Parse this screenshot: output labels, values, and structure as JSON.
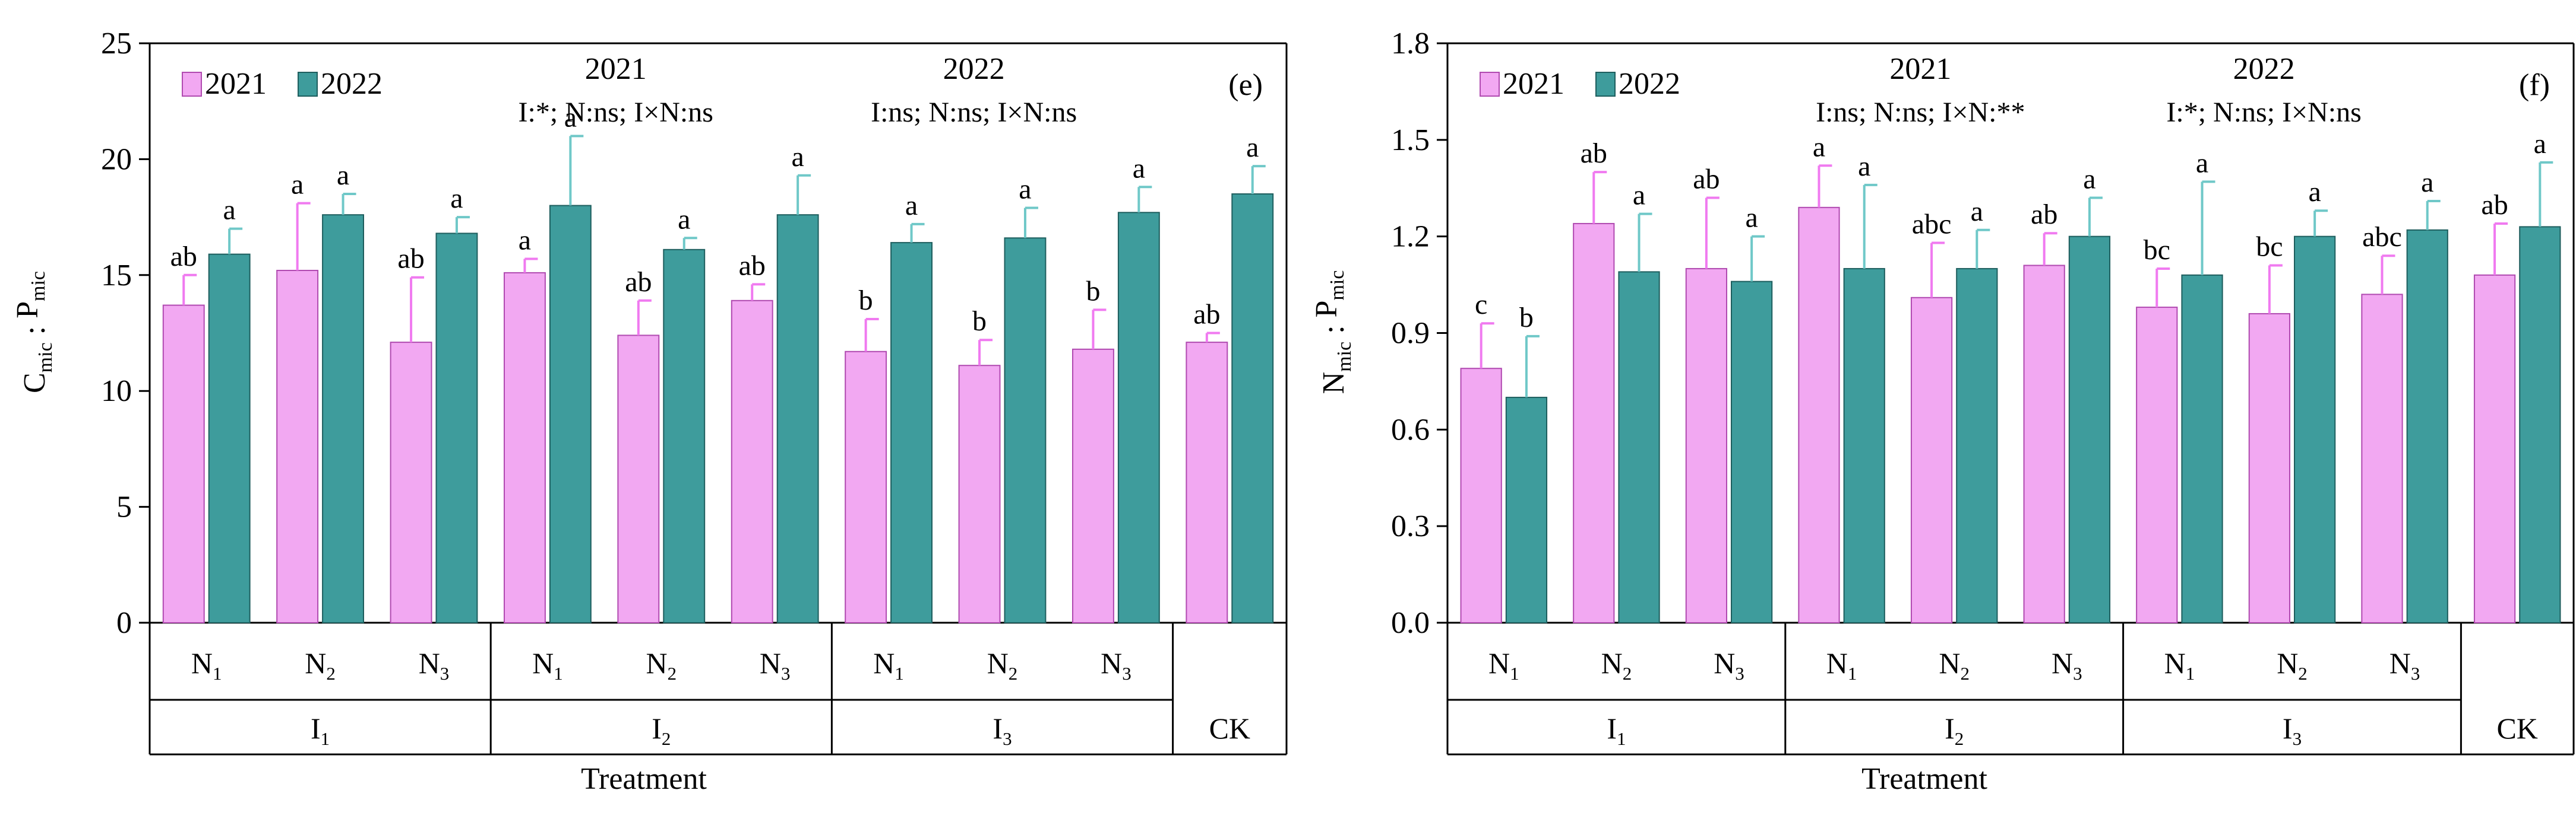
{
  "colors": {
    "y2021_fill": "#F2A8F2",
    "y2021_stroke": "#B04AB0",
    "y2021_err": "#F07AF0",
    "y2022_fill": "#3E9C9C",
    "y2022_stroke": "#1E5E5E",
    "y2022_err": "#6FC8C8",
    "axis": "#000000"
  },
  "chart_data": [
    {
      "id": "panel-e",
      "type": "bar",
      "panel_label": "(e)",
      "ylabel_main": "C",
      "ylabel_sub1": "mic",
      "ylabel_sep": " : ",
      "ylabel_main2": "P",
      "ylabel_sub2": "mic",
      "xlabel": "Treatment",
      "ylim": [
        0,
        25
      ],
      "yticks": [
        0,
        5,
        10,
        15,
        20,
        25
      ],
      "ytick_labels": [
        "0",
        "5",
        "10",
        "15",
        "20",
        "25"
      ],
      "groups": [
        {
          "label": "I",
          "sub": "1",
          "categories": [
            "N1",
            "N2",
            "N3"
          ]
        },
        {
          "label": "I",
          "sub": "2",
          "categories": [
            "N1",
            "N2",
            "N3"
          ]
        },
        {
          "label": "I",
          "sub": "3",
          "categories": [
            "N1",
            "N2",
            "N3"
          ]
        },
        {
          "label": "CK",
          "sub": "",
          "categories": [
            ""
          ]
        }
      ],
      "category_labels": [
        {
          "main": "N",
          "sub": "1"
        },
        {
          "main": "N",
          "sub": "2"
        },
        {
          "main": "N",
          "sub": "3"
        },
        {
          "main": "N",
          "sub": "1"
        },
        {
          "main": "N",
          "sub": "2"
        },
        {
          "main": "N",
          "sub": "3"
        },
        {
          "main": "N",
          "sub": "1"
        },
        {
          "main": "N",
          "sub": "2"
        },
        {
          "main": "N",
          "sub": "3"
        },
        {
          "main": "",
          "sub": ""
        }
      ],
      "legend": [
        "2021",
        "2022"
      ],
      "series": [
        {
          "name": "2021",
          "values": [
            13.7,
            15.2,
            12.1,
            15.1,
            12.4,
            13.9,
            11.7,
            11.1,
            11.8,
            12.1
          ],
          "errors": [
            1.3,
            2.9,
            2.8,
            0.6,
            1.5,
            0.7,
            1.4,
            1.1,
            1.7,
            0.4
          ],
          "letters": [
            "ab",
            "a",
            "ab",
            "a",
            "ab",
            "ab",
            "b",
            "b",
            "b",
            "ab"
          ]
        },
        {
          "name": "2022",
          "values": [
            15.9,
            17.6,
            16.8,
            18.0,
            16.1,
            17.6,
            16.4,
            16.6,
            17.7,
            18.5
          ],
          "errors": [
            1.1,
            0.9,
            0.7,
            3.0,
            0.5,
            1.7,
            0.8,
            1.3,
            1.1,
            1.2
          ],
          "letters": [
            "a",
            "a",
            "a",
            "a",
            "a",
            "a",
            "a",
            "a",
            "a",
            "a"
          ]
        }
      ],
      "annotations": {
        "year1": "2021",
        "stats1": "I:*; N:ns; I×N:ns",
        "year2": "2022",
        "stats2": "I:ns; N:ns; I×N:ns"
      }
    },
    {
      "id": "panel-f",
      "type": "bar",
      "panel_label": "(f)",
      "ylabel_main": "N",
      "ylabel_sub1": "mic",
      "ylabel_sep": " : ",
      "ylabel_main2": "P",
      "ylabel_sub2": "mic",
      "xlabel": "Treatment",
      "ylim": [
        0,
        1.8
      ],
      "yticks": [
        0,
        0.3,
        0.6,
        0.9,
        1.2,
        1.5,
        1.8
      ],
      "ytick_labels": [
        "0.0",
        "0.3",
        "0.6",
        "0.9",
        "1.2",
        "1.5",
        "1.8"
      ],
      "groups": [
        {
          "label": "I",
          "sub": "1",
          "categories": [
            "N1",
            "N2",
            "N3"
          ]
        },
        {
          "label": "I",
          "sub": "2",
          "categories": [
            "N1",
            "N2",
            "N3"
          ]
        },
        {
          "label": "I",
          "sub": "3",
          "categories": [
            "N1",
            "N2",
            "N3"
          ]
        },
        {
          "label": "CK",
          "sub": "",
          "categories": [
            ""
          ]
        }
      ],
      "category_labels": [
        {
          "main": "N",
          "sub": "1"
        },
        {
          "main": "N",
          "sub": "2"
        },
        {
          "main": "N",
          "sub": "3"
        },
        {
          "main": "N",
          "sub": "1"
        },
        {
          "main": "N",
          "sub": "2"
        },
        {
          "main": "N",
          "sub": "3"
        },
        {
          "main": "N",
          "sub": "1"
        },
        {
          "main": "N",
          "sub": "2"
        },
        {
          "main": "N",
          "sub": "3"
        },
        {
          "main": "",
          "sub": ""
        }
      ],
      "legend": [
        "2021",
        "2022"
      ],
      "series": [
        {
          "name": "2021",
          "values": [
            0.79,
            1.24,
            1.1,
            1.29,
            1.01,
            1.11,
            0.98,
            0.96,
            1.02,
            1.08
          ],
          "errors": [
            0.14,
            0.16,
            0.22,
            0.13,
            0.17,
            0.1,
            0.12,
            0.15,
            0.12,
            0.16
          ],
          "letters": [
            "c",
            "ab",
            "ab",
            "a",
            "abc",
            "ab",
            "bc",
            "bc",
            "abc",
            "ab"
          ]
        },
        {
          "name": "2022",
          "values": [
            0.7,
            1.09,
            1.06,
            1.1,
            1.1,
            1.2,
            1.08,
            1.2,
            1.22,
            1.23
          ],
          "errors": [
            0.19,
            0.18,
            0.14,
            0.26,
            0.12,
            0.12,
            0.29,
            0.08,
            0.09,
            0.2
          ],
          "letters": [
            "b",
            "a",
            "a",
            "a",
            "a",
            "a",
            "a",
            "a",
            "a",
            "a"
          ]
        }
      ],
      "annotations": {
        "year1": "2021",
        "stats1": "I:ns; N:ns; I×N:**",
        "year2": "2022",
        "stats2": "I:*; N:ns; I×N:ns"
      }
    }
  ]
}
